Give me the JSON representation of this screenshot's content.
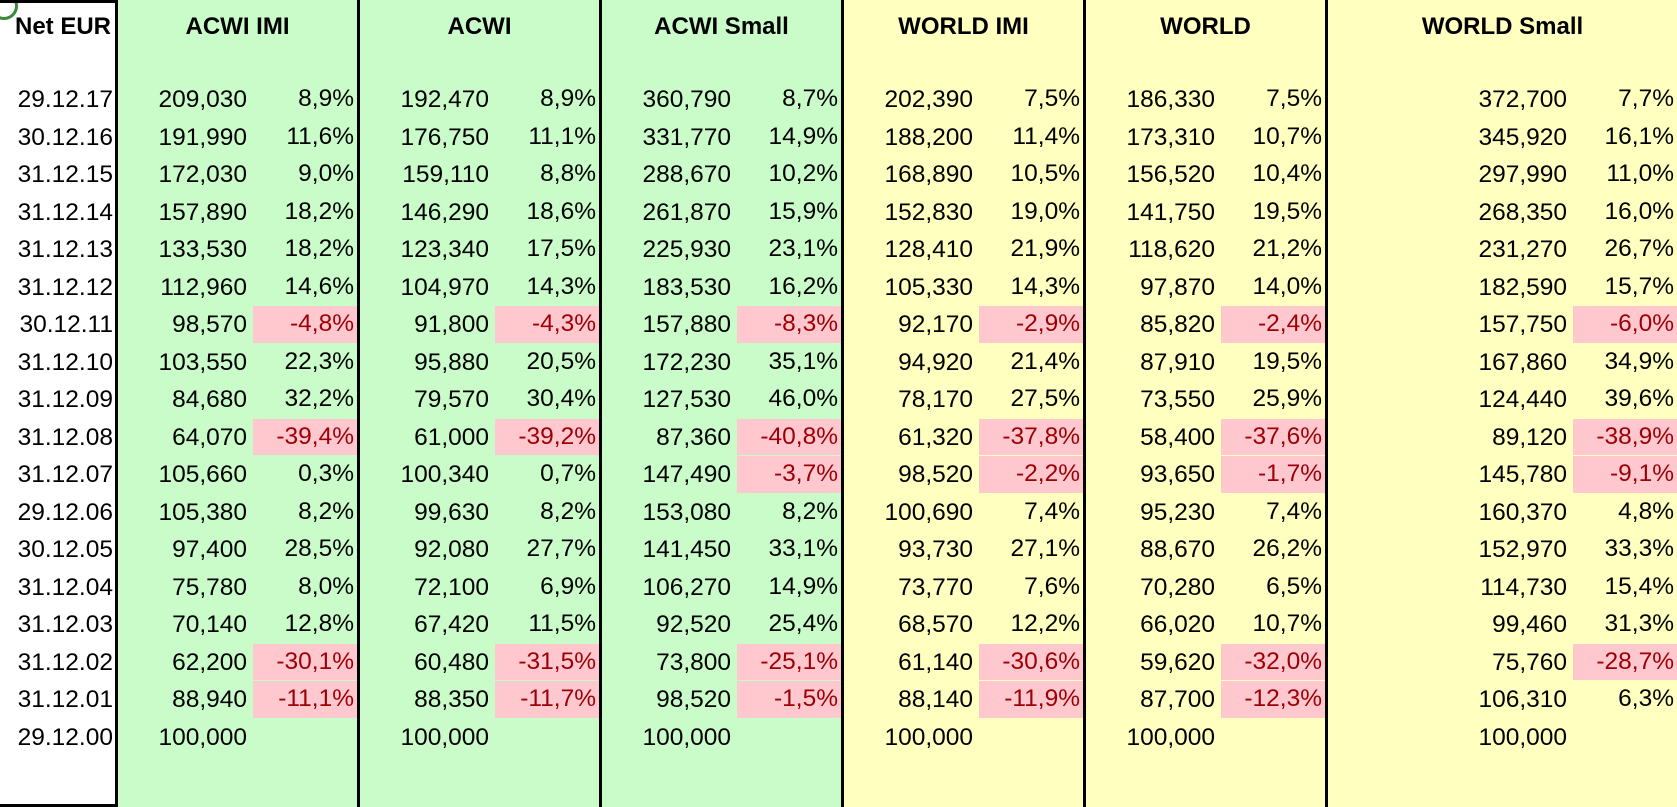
{
  "header_label": "Net EUR",
  "columns": [
    {
      "name": "ACWI IMI",
      "group": "acwi",
      "color": "#c9fcc9"
    },
    {
      "name": "ACWI",
      "group": "acwi",
      "color": "#c9fcc9"
    },
    {
      "name": "ACWI Small",
      "group": "acwi",
      "color": "#c9fcc9"
    },
    {
      "name": "WORLD IMI",
      "group": "world",
      "color": "#ffffc0"
    },
    {
      "name": "WORLD",
      "group": "world",
      "color": "#ffffc0"
    },
    {
      "name": "WORLD Small",
      "group": "world",
      "color": "#ffffc0"
    }
  ],
  "negative_fill": "#ffc7ce",
  "negative_text": "#9c0006",
  "rows": [
    {
      "date": "29.12.17",
      "cells": [
        [
          "209,030",
          "8,9%"
        ],
        [
          "192,470",
          "8,9%"
        ],
        [
          "360,790",
          "8,7%"
        ],
        [
          "202,390",
          "7,5%"
        ],
        [
          "186,330",
          "7,5%"
        ],
        [
          "372,700",
          "7,7%"
        ]
      ]
    },
    {
      "date": "30.12.16",
      "cells": [
        [
          "191,990",
          "11,6%"
        ],
        [
          "176,750",
          "11,1%"
        ],
        [
          "331,770",
          "14,9%"
        ],
        [
          "188,200",
          "11,4%"
        ],
        [
          "173,310",
          "10,7%"
        ],
        [
          "345,920",
          "16,1%"
        ]
      ]
    },
    {
      "date": "31.12.15",
      "cells": [
        [
          "172,030",
          "9,0%"
        ],
        [
          "159,110",
          "8,8%"
        ],
        [
          "288,670",
          "10,2%"
        ],
        [
          "168,890",
          "10,5%"
        ],
        [
          "156,520",
          "10,4%"
        ],
        [
          "297,990",
          "11,0%"
        ]
      ]
    },
    {
      "date": "31.12.14",
      "cells": [
        [
          "157,890",
          "18,2%"
        ],
        [
          "146,290",
          "18,6%"
        ],
        [
          "261,870",
          "15,9%"
        ],
        [
          "152,830",
          "19,0%"
        ],
        [
          "141,750",
          "19,5%"
        ],
        [
          "268,350",
          "16,0%"
        ]
      ]
    },
    {
      "date": "31.12.13",
      "cells": [
        [
          "133,530",
          "18,2%"
        ],
        [
          "123,340",
          "17,5%"
        ],
        [
          "225,930",
          "23,1%"
        ],
        [
          "128,410",
          "21,9%"
        ],
        [
          "118,620",
          "21,2%"
        ],
        [
          "231,270",
          "26,7%"
        ]
      ]
    },
    {
      "date": "31.12.12",
      "cells": [
        [
          "112,960",
          "14,6%"
        ],
        [
          "104,970",
          "14,3%"
        ],
        [
          "183,530",
          "16,2%"
        ],
        [
          "105,330",
          "14,3%"
        ],
        [
          "97,870",
          "14,0%"
        ],
        [
          "182,590",
          "15,7%"
        ]
      ]
    },
    {
      "date": "30.12.11",
      "cells": [
        [
          "98,570",
          "-4,8%"
        ],
        [
          "91,800",
          "-4,3%"
        ],
        [
          "157,880",
          "-8,3%"
        ],
        [
          "92,170",
          "-2,9%"
        ],
        [
          "85,820",
          "-2,4%"
        ],
        [
          "157,750",
          "-6,0%"
        ]
      ]
    },
    {
      "date": "31.12.10",
      "cells": [
        [
          "103,550",
          "22,3%"
        ],
        [
          "95,880",
          "20,5%"
        ],
        [
          "172,230",
          "35,1%"
        ],
        [
          "94,920",
          "21,4%"
        ],
        [
          "87,910",
          "19,5%"
        ],
        [
          "167,860",
          "34,9%"
        ]
      ]
    },
    {
      "date": "31.12.09",
      "cells": [
        [
          "84,680",
          "32,2%"
        ],
        [
          "79,570",
          "30,4%"
        ],
        [
          "127,530",
          "46,0%"
        ],
        [
          "78,170",
          "27,5%"
        ],
        [
          "73,550",
          "25,9%"
        ],
        [
          "124,440",
          "39,6%"
        ]
      ]
    },
    {
      "date": "31.12.08",
      "cells": [
        [
          "64,070",
          "-39,4%"
        ],
        [
          "61,000",
          "-39,2%"
        ],
        [
          "87,360",
          "-40,8%"
        ],
        [
          "61,320",
          "-37,8%"
        ],
        [
          "58,400",
          "-37,6%"
        ],
        [
          "89,120",
          "-38,9%"
        ]
      ]
    },
    {
      "date": "31.12.07",
      "cells": [
        [
          "105,660",
          "0,3%"
        ],
        [
          "100,340",
          "0,7%"
        ],
        [
          "147,490",
          "-3,7%"
        ],
        [
          "98,520",
          "-2,2%"
        ],
        [
          "93,650",
          "-1,7%"
        ],
        [
          "145,780",
          "-9,1%"
        ]
      ]
    },
    {
      "date": "29.12.06",
      "cells": [
        [
          "105,380",
          "8,2%"
        ],
        [
          "99,630",
          "8,2%"
        ],
        [
          "153,080",
          "8,2%"
        ],
        [
          "100,690",
          "7,4%"
        ],
        [
          "95,230",
          "7,4%"
        ],
        [
          "160,370",
          "4,8%"
        ]
      ]
    },
    {
      "date": "30.12.05",
      "cells": [
        [
          "97,400",
          "28,5%"
        ],
        [
          "92,080",
          "27,7%"
        ],
        [
          "141,450",
          "33,1%"
        ],
        [
          "93,730",
          "27,1%"
        ],
        [
          "88,670",
          "26,2%"
        ],
        [
          "152,970",
          "33,3%"
        ]
      ]
    },
    {
      "date": "31.12.04",
      "cells": [
        [
          "75,780",
          "8,0%"
        ],
        [
          "72,100",
          "6,9%"
        ],
        [
          "106,270",
          "14,9%"
        ],
        [
          "73,770",
          "7,6%"
        ],
        [
          "70,280",
          "6,5%"
        ],
        [
          "114,730",
          "15,4%"
        ]
      ]
    },
    {
      "date": "31.12.03",
      "cells": [
        [
          "70,140",
          "12,8%"
        ],
        [
          "67,420",
          "11,5%"
        ],
        [
          "92,520",
          "25,4%"
        ],
        [
          "68,570",
          "12,2%"
        ],
        [
          "66,020",
          "10,7%"
        ],
        [
          "99,460",
          "31,3%"
        ]
      ]
    },
    {
      "date": "31.12.02",
      "cells": [
        [
          "62,200",
          "-30,1%"
        ],
        [
          "60,480",
          "-31,5%"
        ],
        [
          "73,800",
          "-25,1%"
        ],
        [
          "61,140",
          "-30,6%"
        ],
        [
          "59,620",
          "-32,0%"
        ],
        [
          "75,760",
          "-28,7%"
        ]
      ]
    },
    {
      "date": "31.12.01",
      "cells": [
        [
          "88,940",
          "-11,1%"
        ],
        [
          "88,350",
          "-11,7%"
        ],
        [
          "98,520",
          "-1,5%"
        ],
        [
          "88,140",
          "-11,9%"
        ],
        [
          "87,700",
          "-12,3%"
        ],
        [
          "106,310",
          "6,3%"
        ]
      ]
    },
    {
      "date": "29.12.00",
      "cells": [
        [
          "100,000",
          ""
        ],
        [
          "100,000",
          ""
        ],
        [
          "100,000",
          ""
        ],
        [
          "100,000",
          ""
        ],
        [
          "100,000",
          ""
        ],
        [
          "100,000",
          ""
        ]
      ]
    }
  ]
}
